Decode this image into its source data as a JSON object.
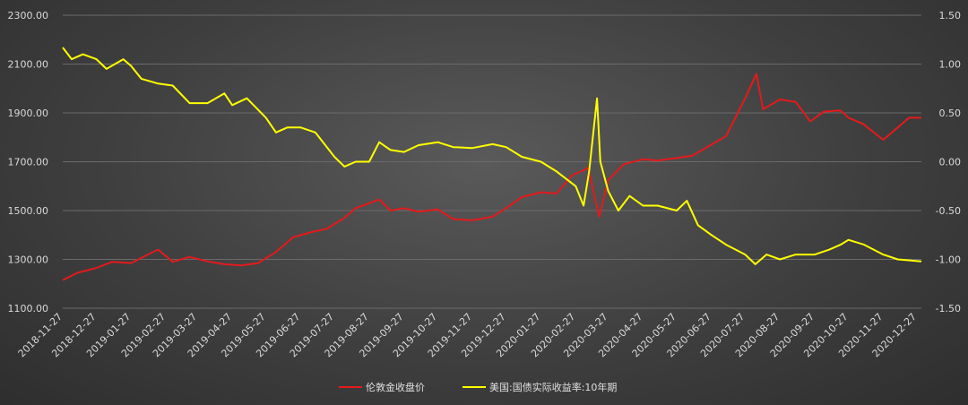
{
  "chart_data": {
    "type": "line",
    "xlabel": "",
    "ylabel_left": "",
    "ylabel_right": "",
    "grid": true,
    "legend_placement": "bottom-center",
    "x_start": "2018-11-27",
    "x_end": "2020-12-31",
    "x_tick_labels": [
      "2018-11-27",
      "2018-12-27",
      "2019-01-27",
      "2019-02-27",
      "2019-03-27",
      "2019-04-27",
      "2019-05-27",
      "2019-06-27",
      "2019-07-27",
      "2019-08-27",
      "2019-09-27",
      "2019-10-27",
      "2019-11-27",
      "2019-12-27",
      "2020-01-27",
      "2020-02-27",
      "2020-03-27",
      "2020-04-27",
      "2020-05-27",
      "2020-06-27",
      "2020-07-27",
      "2020-08-27",
      "2020-09-27",
      "2020-10-27",
      "2020-11-27",
      "2020-12-27"
    ],
    "y_left_ticks": [
      "1100.00",
      "1300.00",
      "1500.00",
      "1700.00",
      "1900.00",
      "2100.00",
      "2300.00"
    ],
    "y_left_range": [
      1100,
      2300
    ],
    "y_right_ticks": [
      "-1.50",
      "-1.00",
      "-0.50",
      "0.00",
      "0.50",
      "1.00",
      "1.50"
    ],
    "y_right_range": [
      -1.5,
      1.5
    ],
    "series": [
      {
        "name": "伦敦金收盘价",
        "axis": "left",
        "color": "#e31a1c",
        "points": [
          [
            "2018-11-27",
            1215
          ],
          [
            "2018-12-10",
            1245
          ],
          [
            "2018-12-27",
            1265
          ],
          [
            "2019-01-10",
            1290
          ],
          [
            "2019-01-27",
            1285
          ],
          [
            "2019-02-10",
            1318
          ],
          [
            "2019-02-20",
            1340
          ],
          [
            "2019-03-05",
            1290
          ],
          [
            "2019-03-20",
            1310
          ],
          [
            "2019-04-05",
            1292
          ],
          [
            "2019-04-20",
            1280
          ],
          [
            "2019-05-05",
            1275
          ],
          [
            "2019-05-20",
            1285
          ],
          [
            "2019-06-05",
            1330
          ],
          [
            "2019-06-20",
            1390
          ],
          [
            "2019-07-05",
            1410
          ],
          [
            "2019-07-20",
            1425
          ],
          [
            "2019-08-05",
            1470
          ],
          [
            "2019-08-15",
            1510
          ],
          [
            "2019-08-27",
            1530
          ],
          [
            "2019-09-05",
            1545
          ],
          [
            "2019-09-15",
            1500
          ],
          [
            "2019-09-27",
            1510
          ],
          [
            "2019-10-10",
            1495
          ],
          [
            "2019-10-27",
            1505
          ],
          [
            "2019-11-10",
            1465
          ],
          [
            "2019-11-27",
            1460
          ],
          [
            "2019-12-15",
            1475
          ],
          [
            "2019-12-27",
            1510
          ],
          [
            "2020-01-10",
            1555
          ],
          [
            "2020-01-27",
            1575
          ],
          [
            "2020-02-10",
            1570
          ],
          [
            "2020-02-24",
            1645
          ],
          [
            "2020-03-05",
            1665
          ],
          [
            "2020-03-09",
            1675
          ],
          [
            "2020-03-19",
            1475
          ],
          [
            "2020-03-27",
            1625
          ],
          [
            "2020-04-10",
            1690
          ],
          [
            "2020-04-27",
            1710
          ],
          [
            "2020-05-10",
            1705
          ],
          [
            "2020-05-27",
            1715
          ],
          [
            "2020-06-10",
            1725
          ],
          [
            "2020-06-27",
            1770
          ],
          [
            "2020-07-10",
            1805
          ],
          [
            "2020-07-27",
            1960
          ],
          [
            "2020-08-06",
            2060
          ],
          [
            "2020-08-12",
            1915
          ],
          [
            "2020-08-27",
            1955
          ],
          [
            "2020-09-10",
            1945
          ],
          [
            "2020-09-23",
            1865
          ],
          [
            "2020-10-05",
            1905
          ],
          [
            "2020-10-20",
            1910
          ],
          [
            "2020-10-27",
            1880
          ],
          [
            "2020-11-09",
            1855
          ],
          [
            "2020-11-27",
            1790
          ],
          [
            "2020-12-10",
            1840
          ],
          [
            "2020-12-20",
            1880
          ],
          [
            "2020-12-31",
            1880
          ]
        ]
      },
      {
        "name": "美国:国债实际收益率:10年期",
        "axis": "right",
        "color": "#ffff00",
        "points": [
          [
            "2018-11-27",
            1.17
          ],
          [
            "2018-12-05",
            1.05
          ],
          [
            "2018-12-15",
            1.1
          ],
          [
            "2018-12-27",
            1.05
          ],
          [
            "2019-01-05",
            0.95
          ],
          [
            "2019-01-20",
            1.05
          ],
          [
            "2019-01-27",
            0.98
          ],
          [
            "2019-02-05",
            0.85
          ],
          [
            "2019-02-20",
            0.8
          ],
          [
            "2019-03-05",
            0.78
          ],
          [
            "2019-03-20",
            0.6
          ],
          [
            "2019-04-05",
            0.6
          ],
          [
            "2019-04-20",
            0.7
          ],
          [
            "2019-04-27",
            0.58
          ],
          [
            "2019-05-10",
            0.65
          ],
          [
            "2019-05-27",
            0.45
          ],
          [
            "2019-06-05",
            0.3
          ],
          [
            "2019-06-15",
            0.35
          ],
          [
            "2019-06-27",
            0.35
          ],
          [
            "2019-07-10",
            0.3
          ],
          [
            "2019-07-27",
            0.05
          ],
          [
            "2019-08-05",
            -0.05
          ],
          [
            "2019-08-15",
            0.0
          ],
          [
            "2019-08-27",
            0.0
          ],
          [
            "2019-09-05",
            0.2
          ],
          [
            "2019-09-15",
            0.12
          ],
          [
            "2019-09-27",
            0.1
          ],
          [
            "2019-10-10",
            0.17
          ],
          [
            "2019-10-27",
            0.2
          ],
          [
            "2019-11-10",
            0.15
          ],
          [
            "2019-11-27",
            0.14
          ],
          [
            "2019-12-15",
            0.18
          ],
          [
            "2019-12-27",
            0.15
          ],
          [
            "2020-01-10",
            0.05
          ],
          [
            "2020-01-27",
            0.0
          ],
          [
            "2020-02-10",
            -0.1
          ],
          [
            "2020-02-27",
            -0.25
          ],
          [
            "2020-03-05",
            -0.45
          ],
          [
            "2020-03-10",
            -0.1
          ],
          [
            "2020-03-17",
            0.65
          ],
          [
            "2020-03-20",
            0.0
          ],
          [
            "2020-03-27",
            -0.3
          ],
          [
            "2020-04-05",
            -0.5
          ],
          [
            "2020-04-15",
            -0.35
          ],
          [
            "2020-04-27",
            -0.45
          ],
          [
            "2020-05-10",
            -0.45
          ],
          [
            "2020-05-27",
            -0.5
          ],
          [
            "2020-06-05",
            -0.4
          ],
          [
            "2020-06-15",
            -0.65
          ],
          [
            "2020-06-27",
            -0.75
          ],
          [
            "2020-07-10",
            -0.85
          ],
          [
            "2020-07-27",
            -0.95
          ],
          [
            "2020-08-05",
            -1.05
          ],
          [
            "2020-08-15",
            -0.95
          ],
          [
            "2020-08-27",
            -1.0
          ],
          [
            "2020-09-10",
            -0.95
          ],
          [
            "2020-09-27",
            -0.95
          ],
          [
            "2020-10-10",
            -0.9
          ],
          [
            "2020-10-20",
            -0.85
          ],
          [
            "2020-10-27",
            -0.8
          ],
          [
            "2020-11-10",
            -0.85
          ],
          [
            "2020-11-27",
            -0.95
          ],
          [
            "2020-12-10",
            -1.0
          ],
          [
            "2020-12-31",
            -1.02
          ]
        ]
      }
    ]
  }
}
